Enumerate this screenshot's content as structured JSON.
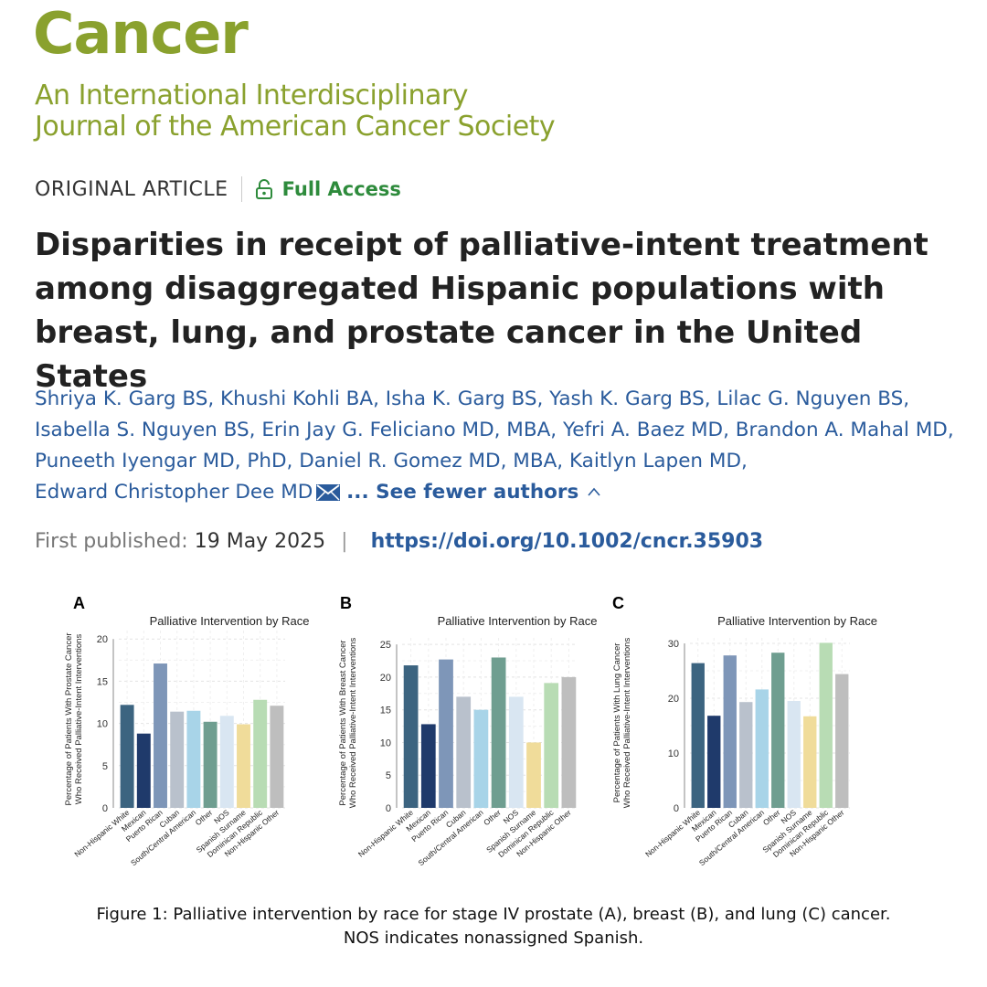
{
  "journal": {
    "name": "Cancer",
    "subtitle_line1": "An International Interdisciplinary",
    "subtitle_line2": "Journal of the American Cancer Society"
  },
  "article": {
    "type": "ORIGINAL ARTICLE",
    "access": "Full Access",
    "title": "Disparities in receipt of palliative-intent treatment among disaggregated Hispanic populations with breast, lung, and prostate cancer in the United States",
    "authors_lines": [
      "Shriya K. Garg BS, Khushi Kohli BA, Isha K. Garg BS, Yash K. Garg BS, Lilac G. Nguyen BS,",
      "Isabella S. Nguyen BS, Erin Jay G. Feliciano MD, MBA, Yefri A. Baez MD, Brandon A. Mahal MD,",
      "Puneeth Iyengar MD, PhD, Daniel R. Gomez MD, MBA, Kaitlyn Lapen MD,",
      "Edward Christopher Dee MD"
    ],
    "see_fewer": "... See fewer authors",
    "published_label": "First published:",
    "published_date": "19 May 2025",
    "doi": "https://doi.org/10.1002/cncr.35903"
  },
  "colors": {
    "brand": "#8aa12e",
    "link": "#2a5b9c",
    "access": "#2e8b3c"
  },
  "chart_data": [
    {
      "type": "bar",
      "panel": "A",
      "title": "Palliative Intervention by Race",
      "ylabel_line1": "Percentage of Patients With Prostate Cancer",
      "ylabel_line2": "Who Received Palliative-Intent Interventions",
      "categories": [
        "Non-Hispanic White",
        "Mexican",
        "Puerto Rican",
        "Cuban",
        "South/Central American",
        "Other",
        "NOS",
        "Spanish Surname",
        "Dominican Republic",
        "Non-Hispanic Other"
      ],
      "values": [
        12.2,
        8.8,
        17.1,
        11.4,
        11.5,
        10.2,
        10.9,
        9.9,
        12.8,
        12.1
      ],
      "yticks": [
        0,
        5,
        10,
        15,
        20
      ],
      "ylim": [
        0,
        21
      ]
    },
    {
      "type": "bar",
      "panel": "B",
      "title": "Palliative Intervention by Race",
      "ylabel_line1": "Percentage of Patients With Breast Cancer",
      "ylabel_line2": "Who Received Palliative-Intent Interventions",
      "categories": [
        "Non-Hispanic White",
        "Mexican",
        "Puerto Rican",
        "Cuban",
        "South/Central American",
        "Other",
        "NOS",
        "Spanish Surname",
        "Dominican Republic",
        "Non-Hispanic Other"
      ],
      "values": [
        21.8,
        12.8,
        22.7,
        17.0,
        15.0,
        23.0,
        17.0,
        10.0,
        19.1,
        20.0
      ],
      "yticks": [
        0,
        5,
        10,
        15,
        20,
        25
      ],
      "ylim": [
        0,
        26
      ]
    },
    {
      "type": "bar",
      "panel": "C",
      "title": "Palliative Intervention by Race",
      "ylabel_line1": "Percentage of Patients With Lung Cancer",
      "ylabel_line2": "Who Received Palliative-Intent Interventions",
      "categories": [
        "Non-Hispanic White",
        "Mexican",
        "Puerto Rican",
        "Cuban",
        "South/Central American",
        "Other",
        "NOS",
        "Spanish Surname",
        "Dominican Republic",
        "Non-Hispanic Other"
      ],
      "values": [
        26.4,
        16.8,
        27.8,
        19.3,
        21.6,
        28.3,
        19.5,
        16.7,
        30.1,
        24.4
      ],
      "yticks": [
        0,
        10,
        20,
        30
      ],
      "ylim": [
        0,
        31
      ]
    }
  ],
  "bar_colors": [
    "#3c6480",
    "#1f3a6b",
    "#7e96b8",
    "#b9c1cc",
    "#a8d4e8",
    "#6f9e90",
    "#d9e6f2",
    "#f0dc9a",
    "#b8dcb4",
    "#bebebe"
  ],
  "caption": {
    "line1": "Figure 1: Palliative intervention by race for stage IV prostate (A), breast (B), and lung (C) cancer.",
    "line2": "NOS indicates nonassigned Spanish."
  }
}
